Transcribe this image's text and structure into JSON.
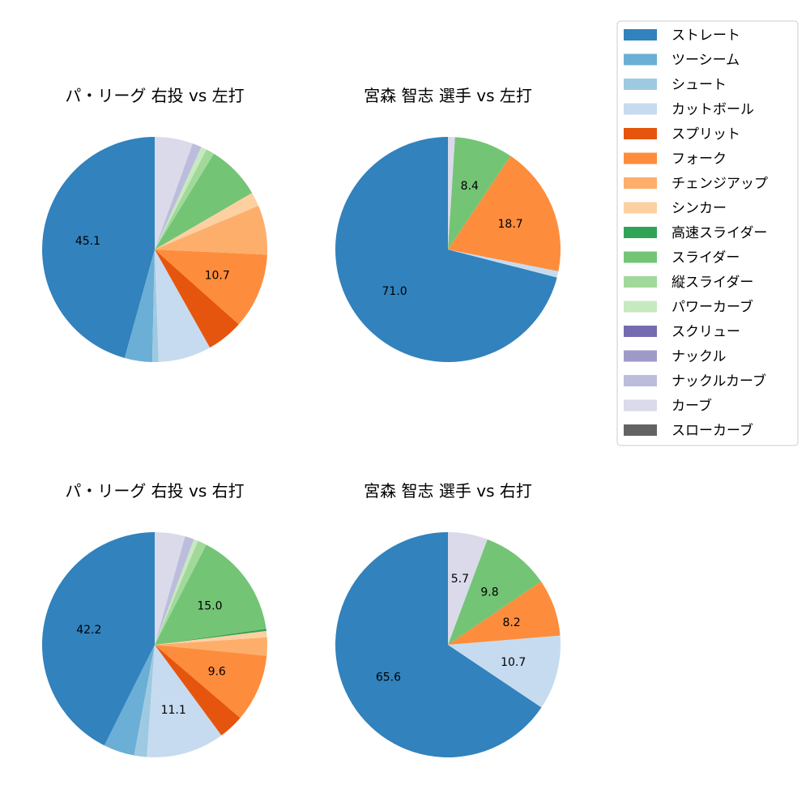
{
  "chart_data": [
    {
      "type": "pie",
      "title": "パ・リーグ 右投 vs 左打",
      "slices": [
        {
          "label": "ストレート",
          "value": 45.1,
          "color": "#3182bd",
          "shown": "45.1"
        },
        {
          "label": "ツーシーム",
          "value": 3.9,
          "color": "#6baed6",
          "shown": ""
        },
        {
          "label": "シュート",
          "value": 0.9,
          "color": "#9ecae1",
          "shown": ""
        },
        {
          "label": "カットボール",
          "value": 7.5,
          "color": "#c6dbef",
          "shown": ""
        },
        {
          "label": "スプリット",
          "value": 5.2,
          "color": "#e6550d",
          "shown": ""
        },
        {
          "label": "フォーク",
          "value": 10.7,
          "color": "#fd8d3c",
          "shown": "10.7"
        },
        {
          "label": "チェンジアップ",
          "value": 7.0,
          "color": "#fdae6b",
          "shown": ""
        },
        {
          "label": "シンカー",
          "value": 2.0,
          "color": "#fdd0a2",
          "shown": ""
        },
        {
          "label": "高速スライダー",
          "value": 0.0,
          "color": "#31a354",
          "shown": ""
        },
        {
          "label": "スライダー",
          "value": 7.7,
          "color": "#74c476",
          "shown": ""
        },
        {
          "label": "縦スライダー",
          "value": 1.2,
          "color": "#a1d99b",
          "shown": ""
        },
        {
          "label": "パワーカーブ",
          "value": 0.8,
          "color": "#c7e9c0",
          "shown": ""
        },
        {
          "label": "スクリュー",
          "value": 0.0,
          "color": "#756bb1",
          "shown": ""
        },
        {
          "label": "ナックル",
          "value": 0.0,
          "color": "#9e9ac8",
          "shown": ""
        },
        {
          "label": "ナックルカーブ",
          "value": 1.3,
          "color": "#bcbddc",
          "shown": ""
        },
        {
          "label": "カーブ",
          "value": 5.4,
          "color": "#dadaeb",
          "shown": ""
        },
        {
          "label": "スローカーブ",
          "value": 0.0,
          "color": "#636363",
          "shown": ""
        }
      ]
    },
    {
      "type": "pie",
      "title": "宮森 智志 選手 vs 左打",
      "slices": [
        {
          "label": "ストレート",
          "value": 71.0,
          "color": "#3182bd",
          "shown": "71.0"
        },
        {
          "label": "カットボール",
          "value": 0.9,
          "color": "#c6dbef",
          "shown": ""
        },
        {
          "label": "フォーク",
          "value": 18.7,
          "color": "#fd8d3c",
          "shown": "18.7"
        },
        {
          "label": "スライダー",
          "value": 8.4,
          "color": "#74c476",
          "shown": "8.4"
        },
        {
          "label": "カーブ",
          "value": 1.0,
          "color": "#dadaeb",
          "shown": ""
        }
      ]
    },
    {
      "type": "pie",
      "title": "パ・リーグ 右投 vs 右打",
      "slices": [
        {
          "label": "ストレート",
          "value": 42.2,
          "color": "#3182bd",
          "shown": "42.2"
        },
        {
          "label": "ツーシーム",
          "value": 4.4,
          "color": "#6baed6",
          "shown": ""
        },
        {
          "label": "シュート",
          "value": 1.8,
          "color": "#9ecae1",
          "shown": ""
        },
        {
          "label": "カットボール",
          "value": 11.1,
          "color": "#c6dbef",
          "shown": "11.1"
        },
        {
          "label": "スプリット",
          "value": 3.6,
          "color": "#e6550d",
          "shown": ""
        },
        {
          "label": "フォーク",
          "value": 9.6,
          "color": "#fd8d3c",
          "shown": "9.6"
        },
        {
          "label": "チェンジアップ",
          "value": 2.6,
          "color": "#fdae6b",
          "shown": ""
        },
        {
          "label": "シンカー",
          "value": 0.9,
          "color": "#fdd0a2",
          "shown": ""
        },
        {
          "label": "高速スライダー",
          "value": 0.3,
          "color": "#31a354",
          "shown": ""
        },
        {
          "label": "スライダー",
          "value": 15.0,
          "color": "#74c476",
          "shown": "15.0"
        },
        {
          "label": "縦スライダー",
          "value": 1.3,
          "color": "#a1d99b",
          "shown": ""
        },
        {
          "label": "パワーカーブ",
          "value": 0.6,
          "color": "#c7e9c0",
          "shown": ""
        },
        {
          "label": "スクリュー",
          "value": 0.0,
          "color": "#756bb1",
          "shown": ""
        },
        {
          "label": "ナックル",
          "value": 0.0,
          "color": "#9e9ac8",
          "shown": ""
        },
        {
          "label": "ナックルカーブ",
          "value": 1.3,
          "color": "#bcbddc",
          "shown": ""
        },
        {
          "label": "カーブ",
          "value": 4.3,
          "color": "#dadaeb",
          "shown": ""
        },
        {
          "label": "スローカーブ",
          "value": 0.0,
          "color": "#636363",
          "shown": ""
        }
      ]
    },
    {
      "type": "pie",
      "title": "宮森 智志 選手 vs 右打",
      "slices": [
        {
          "label": "ストレート",
          "value": 65.6,
          "color": "#3182bd",
          "shown": "65.6"
        },
        {
          "label": "カットボール",
          "value": 10.7,
          "color": "#c6dbef",
          "shown": "10.7"
        },
        {
          "label": "フォーク",
          "value": 8.2,
          "color": "#fd8d3c",
          "shown": "8.2"
        },
        {
          "label": "スライダー",
          "value": 9.8,
          "color": "#74c476",
          "shown": "9.8"
        },
        {
          "label": "カーブ",
          "value": 5.7,
          "color": "#dadaeb",
          "shown": "5.7"
        }
      ]
    }
  ],
  "legend": {
    "placement": "top-right",
    "entries": [
      {
        "label": "ストレート",
        "color": "#3182bd"
      },
      {
        "label": "ツーシーム",
        "color": "#6baed6"
      },
      {
        "label": "シュート",
        "color": "#9ecae1"
      },
      {
        "label": "カットボール",
        "color": "#c6dbef"
      },
      {
        "label": "スプリット",
        "color": "#e6550d"
      },
      {
        "label": "フォーク",
        "color": "#fd8d3c"
      },
      {
        "label": "チェンジアップ",
        "color": "#fdae6b"
      },
      {
        "label": "シンカー",
        "color": "#fdd0a2"
      },
      {
        "label": "高速スライダー",
        "color": "#31a354"
      },
      {
        "label": "スライダー",
        "color": "#74c476"
      },
      {
        "label": "縦スライダー",
        "color": "#a1d99b"
      },
      {
        "label": "パワーカーブ",
        "color": "#c7e9c0"
      },
      {
        "label": "スクリュー",
        "color": "#756bb1"
      },
      {
        "label": "ナックル",
        "color": "#9e9ac8"
      },
      {
        "label": "ナックルカーブ",
        "color": "#bcbddc"
      },
      {
        "label": "カーブ",
        "color": "#dadaeb"
      },
      {
        "label": "スローカーブ",
        "color": "#636363"
      }
    ]
  }
}
